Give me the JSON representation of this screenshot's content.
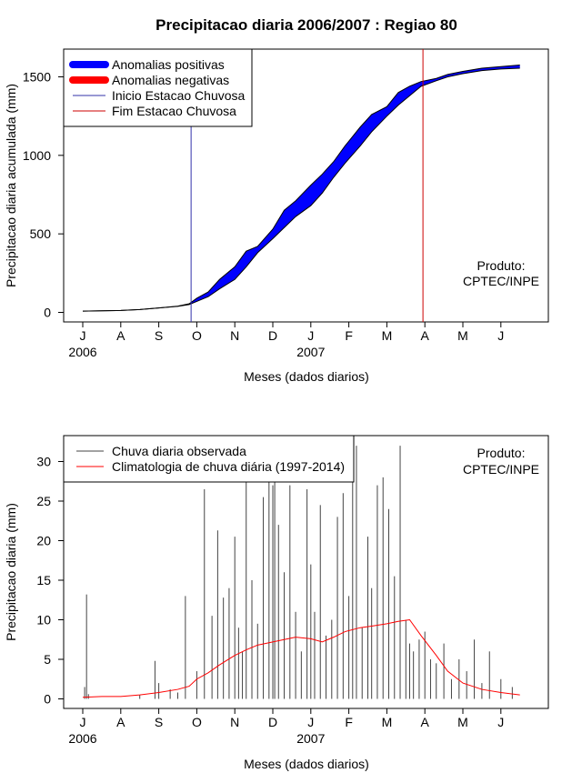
{
  "figure_title": "Precipitacao diaria 2006/2007 : Regiao 80",
  "chart_data": [
    {
      "type": "area",
      "ylabel": "Precipitacao diaria acumulada (mm)",
      "xlabel": "Meses (dados diarios)",
      "ylim": [
        0,
        1600
      ],
      "yticks": [
        0,
        500,
        1000,
        1500
      ],
      "xticks": [
        "J",
        "A",
        "S",
        "O",
        "N",
        "D",
        "J",
        "F",
        "M",
        "A",
        "M",
        "J"
      ],
      "year_labels": [
        {
          "text": "2006",
          "month_index": 0
        },
        {
          "text": "2007",
          "month_index": 6
        }
      ],
      "legend": {
        "position": "top-left",
        "entries": [
          {
            "label": "Anomalias positivas",
            "color": "#0000ff",
            "style": "thick"
          },
          {
            "label": "Anomalias negativas",
            "color": "#ff0000",
            "style": "thick"
          },
          {
            "label": "Inicio Estacao Chuvosa",
            "color": "#3333aa",
            "style": "thin"
          },
          {
            "label": "Fim Estacao Chuvosa",
            "color": "#cc0000",
            "style": "thin"
          }
        ]
      },
      "annotation": [
        "Produto:",
        "CPTEC/INPE"
      ],
      "season_start_month": 2.85,
      "season_end_month": 8.95,
      "x_months": [
        0,
        0.5,
        1,
        1.5,
        2,
        2.5,
        2.8,
        3.0,
        3.3,
        3.6,
        4.0,
        4.3,
        4.6,
        5.0,
        5.3,
        5.6,
        6.0,
        6.3,
        6.6,
        6.9,
        7.3,
        7.6,
        8.0,
        8.3,
        8.6,
        8.9,
        9.3,
        9.6,
        10.0,
        10.5,
        11.0,
        11.5
      ],
      "observed": [
        8,
        10,
        12,
        18,
        28,
        40,
        55,
        90,
        130,
        210,
        290,
        390,
        420,
        530,
        650,
        710,
        810,
        880,
        960,
        1060,
        1180,
        1260,
        1310,
        1400,
        1440,
        1470,
        1490,
        1515,
        1535,
        1555,
        1565,
        1575
      ],
      "climatology": [
        8,
        10,
        12,
        18,
        28,
        38,
        50,
        70,
        100,
        150,
        210,
        290,
        380,
        470,
        540,
        610,
        680,
        760,
        860,
        950,
        1060,
        1150,
        1250,
        1320,
        1380,
        1440,
        1475,
        1500,
        1520,
        1540,
        1550,
        1555
      ]
    },
    {
      "type": "bar",
      "ylabel": "Precipitacao diaria (mm)",
      "xlabel": "Meses (dados diarios)",
      "ylim": [
        0,
        32
      ],
      "yticks": [
        0,
        5,
        10,
        15,
        20,
        25,
        30
      ],
      "xticks": [
        "J",
        "A",
        "S",
        "O",
        "N",
        "D",
        "J",
        "F",
        "M",
        "A",
        "M",
        "J"
      ],
      "year_labels": [
        {
          "text": "2006",
          "month_index": 0
        },
        {
          "text": "2007",
          "month_index": 6
        }
      ],
      "legend": {
        "position": "top-left",
        "entries": [
          {
            "label": "Chuva diaria observada",
            "color": "#444444"
          },
          {
            "label": "Climatologia de chuva diária (1997-2014)",
            "color": "#ff0000"
          }
        ]
      },
      "annotation": [
        "Produto:",
        "CPTEC/INPE"
      ],
      "series": [
        {
          "name": "Chuva diaria observada",
          "x_months": [
            0.05,
            0.1,
            0.15,
            1.5,
            1.9,
            2.0,
            2.3,
            2.5,
            2.7,
            3.0,
            3.2,
            3.4,
            3.55,
            3.7,
            3.85,
            4.0,
            4.1,
            4.2,
            4.3,
            4.45,
            4.6,
            4.75,
            4.9,
            5.0,
            5.05,
            5.15,
            5.3,
            5.45,
            5.6,
            5.75,
            5.9,
            6.0,
            6.1,
            6.25,
            6.4,
            6.55,
            6.7,
            6.85,
            7.0,
            7.1,
            7.2,
            7.35,
            7.5,
            7.6,
            7.75,
            7.9,
            8.05,
            8.2,
            8.35,
            8.5,
            8.6,
            8.7,
            8.85,
            9.0,
            9.15,
            9.3,
            9.5,
            9.7,
            9.9,
            10.1,
            10.3,
            10.5,
            10.7,
            11.0,
            11.3
          ],
          "values": [
            1.5,
            13.2,
            0.6,
            0.5,
            4.8,
            2.0,
            1.2,
            0.8,
            13.0,
            3.5,
            26.5,
            10.5,
            21.3,
            12.8,
            14.0,
            20.5,
            9.0,
            6.0,
            32.0,
            15.0,
            9.5,
            25.5,
            28.0,
            27.0,
            32.0,
            22.0,
            16.0,
            27.0,
            11.0,
            6.0,
            26.5,
            17.0,
            11.0,
            24.5,
            8.0,
            10.0,
            23.0,
            26.0,
            13.0,
            28.0,
            32.0,
            9.0,
            20.5,
            14.0,
            27.0,
            28.0,
            24.0,
            15.5,
            32.0,
            10.0,
            7.0,
            6.0,
            7.5,
            8.5,
            5.0,
            4.5,
            7.0,
            2.5,
            5.0,
            3.5,
            7.5,
            2.0,
            6.0,
            2.5,
            1.5
          ]
        },
        {
          "name": "Climatologia de chuva diária (1997-2014)",
          "x_months": [
            0,
            0.5,
            1,
            1.5,
            2,
            2.5,
            2.8,
            3.0,
            3.3,
            3.6,
            4.0,
            4.3,
            4.6,
            5.0,
            5.3,
            5.6,
            6.0,
            6.3,
            6.6,
            6.9,
            7.3,
            7.6,
            8.0,
            8.3,
            8.6,
            8.9,
            9.3,
            9.6,
            10.0,
            10.5,
            11.0,
            11.5
          ],
          "values": [
            0.2,
            0.3,
            0.3,
            0.5,
            0.8,
            1.2,
            1.6,
            2.5,
            3.3,
            4.3,
            5.5,
            6.2,
            6.8,
            7.2,
            7.5,
            7.8,
            7.6,
            7.2,
            7.8,
            8.5,
            9.0,
            9.2,
            9.5,
            9.8,
            10.0,
            8.0,
            5.5,
            3.5,
            2.0,
            1.2,
            0.8,
            0.5
          ]
        }
      ]
    }
  ]
}
